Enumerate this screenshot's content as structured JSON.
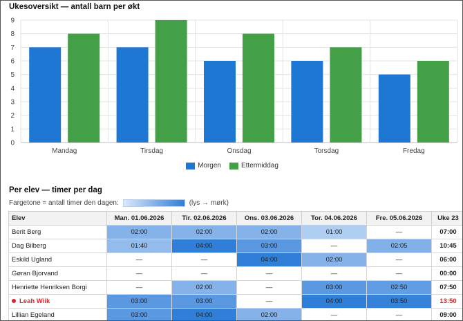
{
  "chart_section": {
    "title": "Ukesoversikt — antall barn per økt"
  },
  "chart_data": {
    "type": "bar",
    "categories": [
      "Mandag",
      "Tirsdag",
      "Onsdag",
      "Torsdag",
      "Fredag"
    ],
    "series": [
      {
        "name": "Morgen",
        "values": [
          7,
          7,
          6,
          6,
          5
        ],
        "color": "#1f77d4"
      },
      {
        "name": "Ettermiddag",
        "values": [
          8,
          9,
          8,
          7,
          6
        ],
        "color": "#43a047"
      }
    ],
    "ylim": [
      0,
      9
    ],
    "yticks": [
      "0",
      "1",
      "2",
      "3",
      "4",
      "5",
      "6",
      "7",
      "8",
      "9"
    ],
    "grid": true,
    "legend": "bottom-center"
  },
  "table_section": {
    "title": "Per elev — timer per dag",
    "scale_label": "Fargetone = antall timer den dagen:",
    "scale_hint": "(lys → mørk)"
  },
  "table": {
    "headers": [
      "Elev",
      "Man. 01.06.2026",
      "Tir. 02.06.2026",
      "Ons. 03.06.2026",
      "Tor. 04.06.2026",
      "Fre. 05.06.2026",
      "Uke 23"
    ],
    "rows": [
      {
        "name": "Berit Berg",
        "cells": [
          "02:00",
          "02:00",
          "02:00",
          "01:00",
          "—"
        ],
        "total": "07:00",
        "alert": false
      },
      {
        "name": "Dag Bilberg",
        "cells": [
          "01:40",
          "04:00",
          "03:00",
          "—",
          "02:05"
        ],
        "total": "10:45",
        "alert": false
      },
      {
        "name": "Eskild Ugland",
        "cells": [
          "—",
          "—",
          "04:00",
          "02:00",
          "—"
        ],
        "total": "06:00",
        "alert": false
      },
      {
        "name": "Gøran Bjorvand",
        "cells": [
          "—",
          "—",
          "—",
          "—",
          "—"
        ],
        "total": "00:00",
        "alert": false
      },
      {
        "name": "Henriette Henriksen Borgi",
        "cells": [
          "—",
          "02:00",
          "—",
          "03:00",
          "02:50"
        ],
        "total": "07:50",
        "alert": false
      },
      {
        "name": "Leah Wiik",
        "cells": [
          "03:00",
          "03:00",
          "—",
          "04:00",
          "03:50"
        ],
        "total": "13:50",
        "alert": true
      },
      {
        "name": "Lillian Egeland",
        "cells": [
          "03:00",
          "04:00",
          "02:00",
          "—",
          "—"
        ],
        "total": "09:00",
        "alert": false
      }
    ]
  }
}
